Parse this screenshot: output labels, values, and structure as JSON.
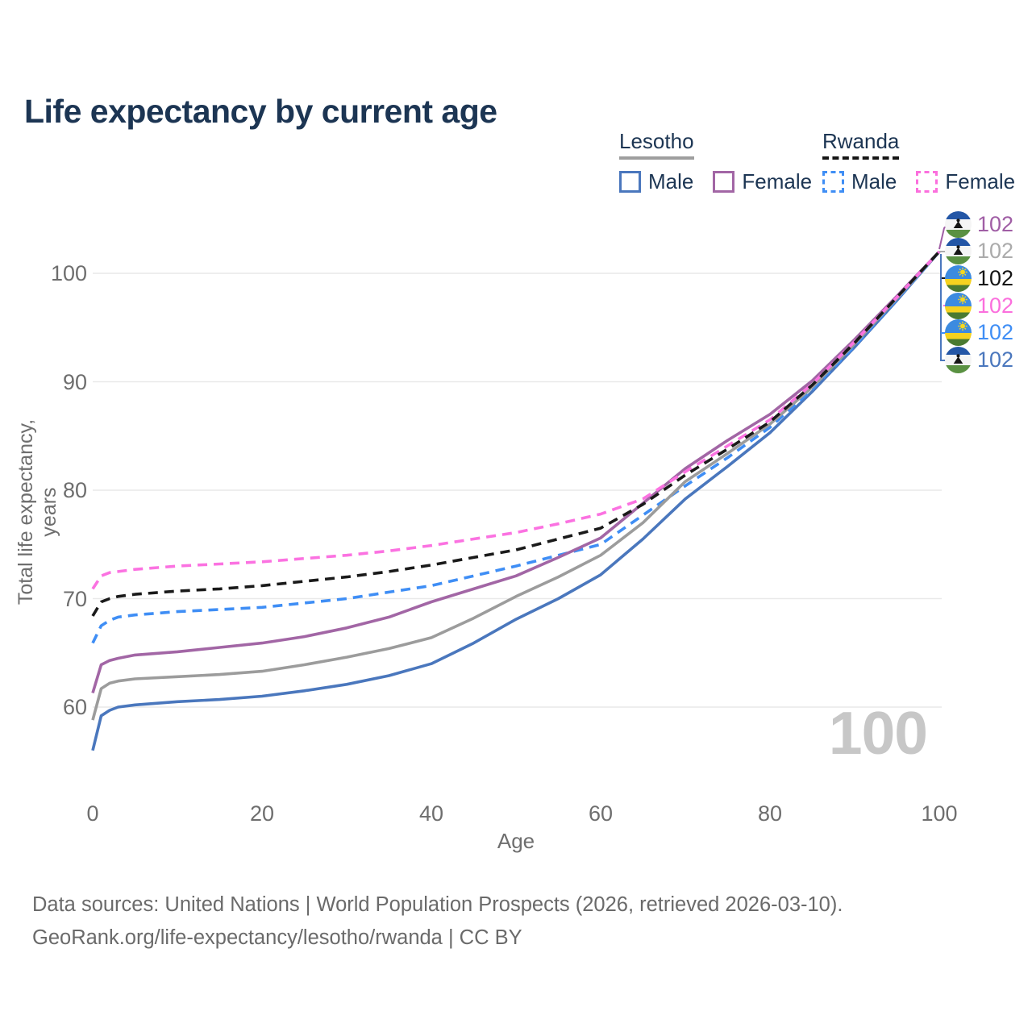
{
  "title": "Life expectancy by current age",
  "legend": {
    "groups": [
      {
        "label": "Lesotho",
        "line_style": "solid",
        "underline_color": "#9e9e9e",
        "items": [
          {
            "label": "Male",
            "color": "#4a77bd",
            "dashed": false
          },
          {
            "label": "Female",
            "color": "#a266a5",
            "dashed": false
          }
        ]
      },
      {
        "label": "Rwanda",
        "line_style": "dashed",
        "underline_color": "#161616",
        "items": [
          {
            "label": "Male",
            "color": "#3f8ef5",
            "dashed": true
          },
          {
            "label": "Female",
            "color": "#fb6fdd",
            "dashed": true
          }
        ]
      }
    ]
  },
  "chart_data": {
    "type": "line",
    "title": "Life expectancy by current age",
    "xlabel": "Age",
    "ylabel": "Total life expectancy, years",
    "xlim": [
      0,
      100
    ],
    "ylim": [
      55,
      104
    ],
    "x_ticks": [
      0,
      20,
      40,
      60,
      80,
      100
    ],
    "y_ticks": [
      60,
      70,
      80,
      90,
      100
    ],
    "grid": "horizontal",
    "legend_position": "top-right",
    "watermark": "100",
    "x": [
      0,
      1,
      2,
      3,
      5,
      10,
      15,
      20,
      25,
      30,
      35,
      40,
      45,
      50,
      55,
      60,
      65,
      70,
      75,
      80,
      85,
      90,
      95,
      100
    ],
    "series": [
      {
        "name": "Lesotho Male",
        "country": "Lesotho",
        "sex": "Male",
        "color": "#4a77bd",
        "dashed": false,
        "values": [
          56.0,
          59.2,
          59.7,
          60.0,
          60.2,
          60.5,
          60.7,
          61.0,
          61.5,
          62.1,
          62.9,
          64.0,
          65.9,
          68.1,
          70.0,
          72.2,
          75.5,
          79.2,
          82.2,
          85.3,
          89.1,
          93.2,
          97.5,
          102
        ]
      },
      {
        "name": "Rwanda Male",
        "country": "Rwanda",
        "sex": "Male",
        "color": "#3f8ef5",
        "dashed": true,
        "values": [
          65.9,
          67.5,
          68.0,
          68.3,
          68.5,
          68.8,
          69.0,
          69.2,
          69.6,
          70.0,
          70.6,
          71.2,
          72.1,
          73.0,
          74.0,
          75.0,
          77.7,
          80.4,
          83.0,
          85.8,
          89.3,
          93.3,
          97.6,
          102
        ]
      },
      {
        "name": "Lesotho Both sexes",
        "country": "Lesotho",
        "sex": "Both",
        "color": "#9c9c9c",
        "dashed": false,
        "values": [
          58.8,
          61.7,
          62.2,
          62.4,
          62.6,
          62.8,
          63.0,
          63.3,
          63.9,
          64.6,
          65.4,
          66.4,
          68.2,
          70.2,
          72.0,
          74.0,
          77.0,
          80.8,
          83.4,
          86.1,
          89.5,
          93.5,
          97.7,
          102
        ]
      },
      {
        "name": "Lesotho Female",
        "country": "Lesotho",
        "sex": "Female",
        "color": "#a266a5",
        "dashed": false,
        "values": [
          61.3,
          63.9,
          64.3,
          64.5,
          64.8,
          65.1,
          65.5,
          65.9,
          66.5,
          67.3,
          68.3,
          69.7,
          70.9,
          72.1,
          73.8,
          75.6,
          78.8,
          82.0,
          84.6,
          87.0,
          90.1,
          93.9,
          97.9,
          102
        ]
      },
      {
        "name": "Rwanda Female",
        "country": "Rwanda",
        "sex": "Female",
        "color": "#fb72e1",
        "dashed": true,
        "values": [
          70.9,
          72.1,
          72.4,
          72.5,
          72.7,
          73.0,
          73.2,
          73.4,
          73.7,
          74.0,
          74.4,
          74.9,
          75.5,
          76.1,
          76.9,
          77.8,
          79.2,
          81.7,
          84.1,
          86.5,
          89.8,
          93.7,
          97.8,
          102
        ]
      },
      {
        "name": "Rwanda Both sexes",
        "country": "Rwanda",
        "sex": "Both",
        "color": "#1a1a1a",
        "dashed": true,
        "values": [
          68.4,
          69.7,
          70.0,
          70.2,
          70.4,
          70.7,
          70.9,
          71.2,
          71.6,
          72.0,
          72.5,
          73.1,
          73.8,
          74.5,
          75.5,
          76.5,
          78.7,
          81.4,
          83.8,
          86.3,
          89.7,
          93.6,
          97.8,
          102
        ]
      }
    ],
    "end_labels": [
      {
        "label": "102",
        "flag": "lesotho",
        "color": "#a05ea5",
        "series": "Lesotho Female"
      },
      {
        "label": "102",
        "flag": "lesotho",
        "color": "#ababab",
        "series": "Lesotho Both sexes"
      },
      {
        "label": "102",
        "flag": "rwanda",
        "color": "#141414",
        "series": "Rwanda Both sexes"
      },
      {
        "label": "102",
        "flag": "rwanda",
        "color": "#fb6fdd",
        "series": "Rwanda Female"
      },
      {
        "label": "102",
        "flag": "rwanda",
        "color": "#3f8ef5",
        "series": "Rwanda Male"
      },
      {
        "label": "102",
        "flag": "lesotho",
        "color": "#4a77bd",
        "series": "Lesotho Male"
      }
    ]
  },
  "footer": {
    "line1": "Data sources: United Nations | World Population Prospects (2026, retrieved 2026-03-10).",
    "line2": "GeoRank.org/life-expectancy/lesotho/rwanda | CC BY"
  }
}
